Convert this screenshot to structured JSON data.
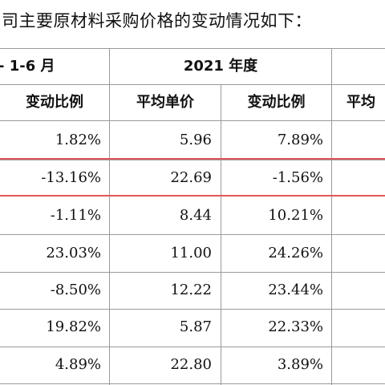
{
  "intro_text": "司主要原材料采购价格的变动情况如下：",
  "period_headers": [
    "- 1-6 月",
    "2021 年度"
  ],
  "column_headers": [
    "变动比例",
    "平均单价",
    "变动比例",
    "平均"
  ],
  "rows": [
    [
      "1.82%",
      "5.96",
      "7.89%"
    ],
    [
      "-13.16%",
      "22.69",
      "-1.56%"
    ],
    [
      "-1.11%",
      "8.44",
      "10.21%"
    ],
    [
      "23.03%",
      "11.00",
      "24.26%"
    ],
    [
      "-8.50%",
      "12.22",
      "23.44%"
    ],
    [
      "19.82%",
      "5.87",
      "22.33%"
    ],
    [
      "4.89%",
      "22.80",
      "3.89%"
    ]
  ],
  "highlight_color": "#e0565a"
}
